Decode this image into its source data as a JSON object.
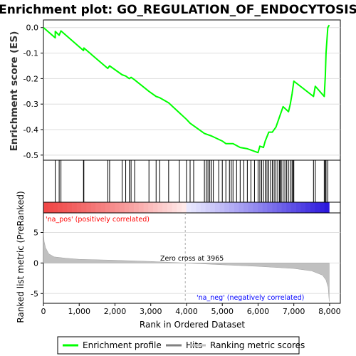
{
  "title": "Enrichment plot: GO_REGULATION_OF_ENDOCYTOSIS",
  "legend": {
    "items": [
      {
        "label": "Enrichment profile",
        "color": "#00ff00"
      },
      {
        "label": "Hits",
        "color": "#808080"
      },
      {
        "label": "Ranking metric scores",
        "color": "#c0c0c0"
      }
    ]
  },
  "chart_data": [
    {
      "type": "line",
      "panel": "enrichment",
      "ylabel": "Enrichment score (ES)",
      "xlim": [
        0,
        8300
      ],
      "ylim": [
        -0.52,
        0.03
      ],
      "yticks": [
        0.0,
        -0.1,
        -0.2,
        -0.3,
        -0.4,
        -0.5
      ],
      "ytick_labels": [
        "0.0",
        "-0.1",
        "-0.2",
        "-0.3",
        "-0.4",
        "-0.5"
      ],
      "grid": true,
      "series": [
        {
          "color": "#00ff00",
          "points": [
            [
              0,
              0.0
            ],
            [
              330,
              -0.04
            ],
            [
              331,
              -0.015
            ],
            [
              440,
              -0.03
            ],
            [
              490,
              -0.013
            ],
            [
              1120,
              -0.09
            ],
            [
              1130,
              -0.08
            ],
            [
              1800,
              -0.16
            ],
            [
              1850,
              -0.15
            ],
            [
              2200,
              -0.185
            ],
            [
              2300,
              -0.19
            ],
            [
              2400,
              -0.2
            ],
            [
              2450,
              -0.195
            ],
            [
              2550,
              -0.205
            ],
            [
              2950,
              -0.25
            ],
            [
              3150,
              -0.27
            ],
            [
              3250,
              -0.275
            ],
            [
              3500,
              -0.295
            ],
            [
              4000,
              -0.36
            ],
            [
              4100,
              -0.375
            ],
            [
              4500,
              -0.415
            ],
            [
              4700,
              -0.425
            ],
            [
              5000,
              -0.445
            ],
            [
              5100,
              -0.455
            ],
            [
              5300,
              -0.455
            ],
            [
              5500,
              -0.47
            ],
            [
              5700,
              -0.475
            ],
            [
              6000,
              -0.49
            ],
            [
              6050,
              -0.465
            ],
            [
              6150,
              -0.47
            ],
            [
              6200,
              -0.445
            ],
            [
              6300,
              -0.41
            ],
            [
              6400,
              -0.41
            ],
            [
              6500,
              -0.39
            ],
            [
              6600,
              -0.35
            ],
            [
              6700,
              -0.31
            ],
            [
              6850,
              -0.33
            ],
            [
              6900,
              -0.3
            ],
            [
              6950,
              -0.26
            ],
            [
              7000,
              -0.21
            ],
            [
              7550,
              -0.27
            ],
            [
              7600,
              -0.23
            ],
            [
              7850,
              -0.27
            ],
            [
              7880,
              -0.19
            ],
            [
              7900,
              -0.1
            ],
            [
              7950,
              0.0
            ],
            [
              7990,
              0.01
            ]
          ]
        }
      ]
    },
    {
      "type": "scatter",
      "panel": "hits",
      "xlim": [
        0,
        8300
      ],
      "hits": [
        330,
        440,
        490,
        1120,
        1130,
        1800,
        1850,
        2200,
        2300,
        2400,
        2450,
        2550,
        2950,
        3150,
        3250,
        3500,
        3800,
        4000,
        4100,
        4200,
        4500,
        4550,
        4600,
        4650,
        4700,
        4750,
        4900,
        5000,
        5100,
        5200,
        5250,
        5300,
        5400,
        5500,
        5600,
        5700,
        5800,
        5900,
        6000,
        6050,
        6100,
        6150,
        6200,
        6250,
        6300,
        6350,
        6400,
        6450,
        6500,
        6550,
        6600,
        6620,
        6650,
        6700,
        6750,
        6800,
        6850,
        6900,
        6950,
        6980,
        7000,
        7550,
        7600,
        7850,
        7880,
        7900,
        7950
      ]
    },
    {
      "type": "area",
      "panel": "ranked-list",
      "ylabel": "Ranked list metric (PreRanked)",
      "xlabel": "Rank in Ordered Dataset",
      "xlim": [
        0,
        8300
      ],
      "ylim": [
        -6.6,
        8.2
      ],
      "xticks": [
        0,
        1000,
        2000,
        3000,
        4000,
        5000,
        6000,
        7000,
        8000
      ],
      "xtick_labels": [
        "0",
        "1,000",
        "2,000",
        "3,000",
        "4,000",
        "5,000",
        "6,000",
        "7,000",
        "8,000"
      ],
      "yticks": [
        -5,
        0,
        5
      ],
      "ytick_labels": [
        "-5",
        "0",
        "5"
      ],
      "zero_cross": 3965,
      "color": "#c0c0c0",
      "points": [
        [
          0,
          5.2
        ],
        [
          20,
          3.5
        ],
        [
          60,
          2.5
        ],
        [
          150,
          1.5
        ],
        [
          300,
          1.0
        ],
        [
          600,
          0.8
        ],
        [
          1000,
          0.6
        ],
        [
          2000,
          0.45
        ],
        [
          3000,
          0.25
        ],
        [
          3965,
          0.0
        ],
        [
          5000,
          -0.3
        ],
        [
          6000,
          -0.55
        ],
        [
          7000,
          -0.9
        ],
        [
          7500,
          -1.3
        ],
        [
          7800,
          -2.0
        ],
        [
          7900,
          -2.8
        ],
        [
          7960,
          -4.0
        ],
        [
          7990,
          -6.3
        ]
      ],
      "annotations": [
        {
          "text": "'na_pos' (positively correlated)",
          "color": "#ff0000"
        },
        {
          "text": "Zero cross at 3965",
          "color": "#000000"
        },
        {
          "text": "'na_neg' (negatively correlated)",
          "color": "#0000ff"
        }
      ]
    }
  ]
}
